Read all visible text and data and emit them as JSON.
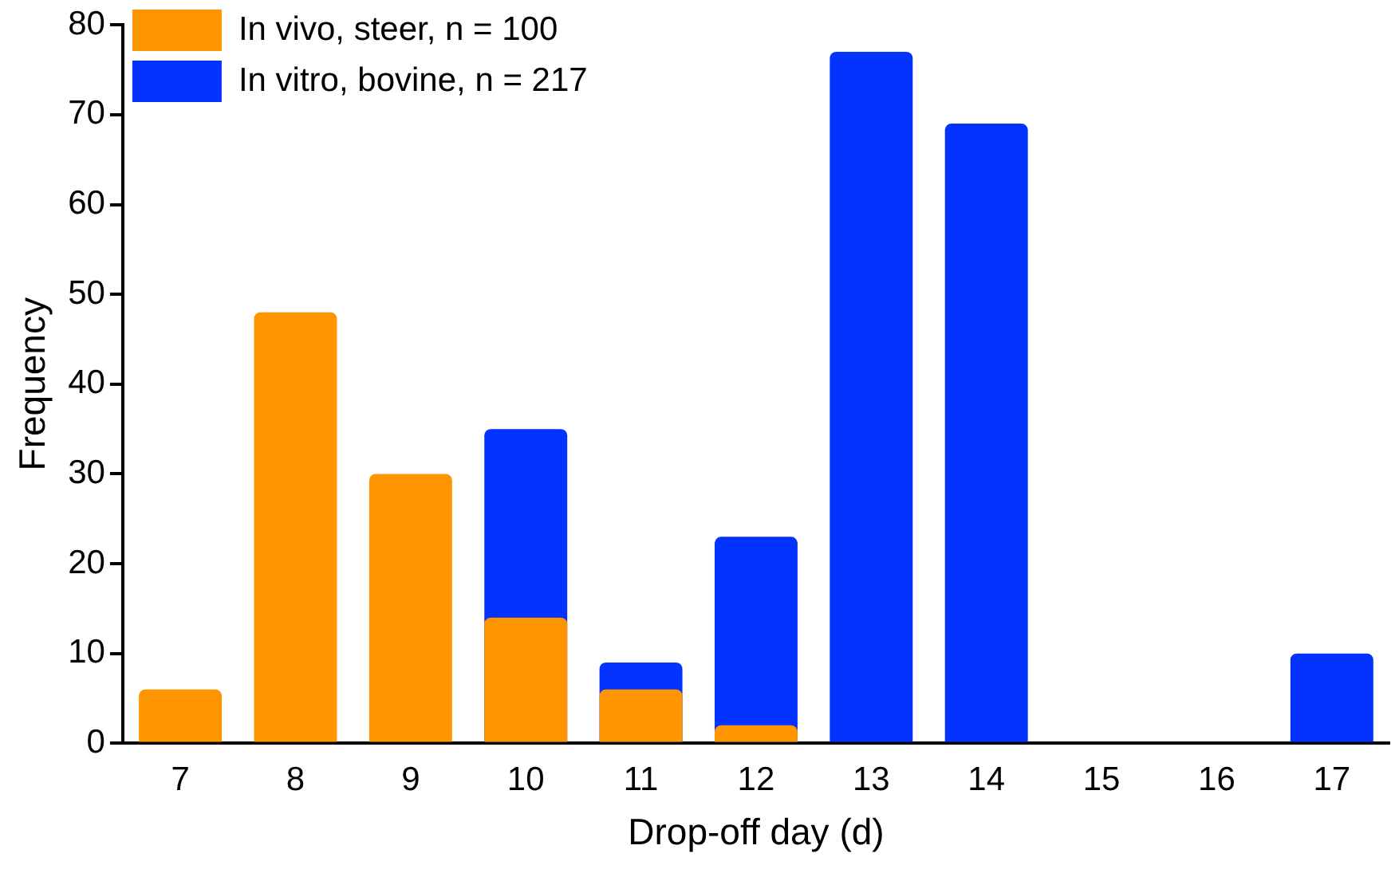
{
  "chart_data": {
    "type": "bar",
    "xlabel": "Drop-off day (d)",
    "ylabel": "Frequency",
    "categories": [
      "7",
      "8",
      "9",
      "10",
      "11",
      "12",
      "13",
      "14",
      "15",
      "16",
      "17"
    ],
    "series": [
      {
        "name": "In vivo, steer, n = 100",
        "color": "#ff9500",
        "values": [
          6,
          48,
          30,
          14,
          6,
          2,
          0,
          0,
          0,
          0,
          0
        ]
      },
      {
        "name": "In vitro, bovine, n = 217",
        "color": "#0433ff",
        "values": [
          0,
          0,
          0,
          35,
          9,
          23,
          77,
          69,
          0,
          0,
          10
        ]
      }
    ],
    "ylim": [
      0,
      80
    ],
    "yticks": [
      0,
      10,
      20,
      30,
      40,
      50,
      60,
      70,
      80
    ],
    "grid": false,
    "legend": "top left"
  }
}
